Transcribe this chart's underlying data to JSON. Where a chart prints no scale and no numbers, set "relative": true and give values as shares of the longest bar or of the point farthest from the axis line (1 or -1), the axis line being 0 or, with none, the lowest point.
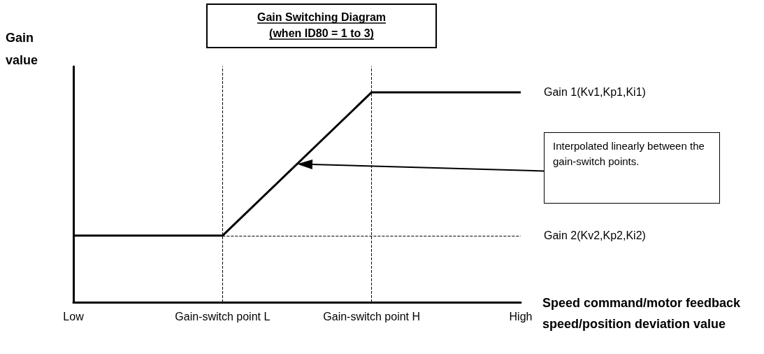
{
  "chart_data": {
    "type": "line",
    "relative": true,
    "title": "Gain Switching Diagram\n(when ID80 = 1 to 3)",
    "ylabel": "Gain value",
    "xlabel": "Speed command/motor feedback speed/position deviation value",
    "categories": [
      "Low",
      "Gain-switch point L",
      "Gain-switch point H",
      "High"
    ],
    "values": [
      0.317,
      0.317,
      1,
      1
    ],
    "color": "#000000",
    "marker": "none",
    "line_style": "solid",
    "ref_lines": [
      {
        "axis": "x",
        "value": "Gain-switch point L",
        "line_style": "dashed"
      },
      {
        "axis": "x",
        "value": "Gain-switch point H",
        "line_style": "dashed"
      },
      {
        "axis": "y",
        "value": 0.317,
        "line_style": "dashed"
      }
    ],
    "annotations": [
      "Gain 1(Kv1,Kp1,Ki1)",
      "Gain 2(Kv2,Kp2,Ki2)",
      "Interpolated linearly between the gain-switch points."
    ]
  }
}
